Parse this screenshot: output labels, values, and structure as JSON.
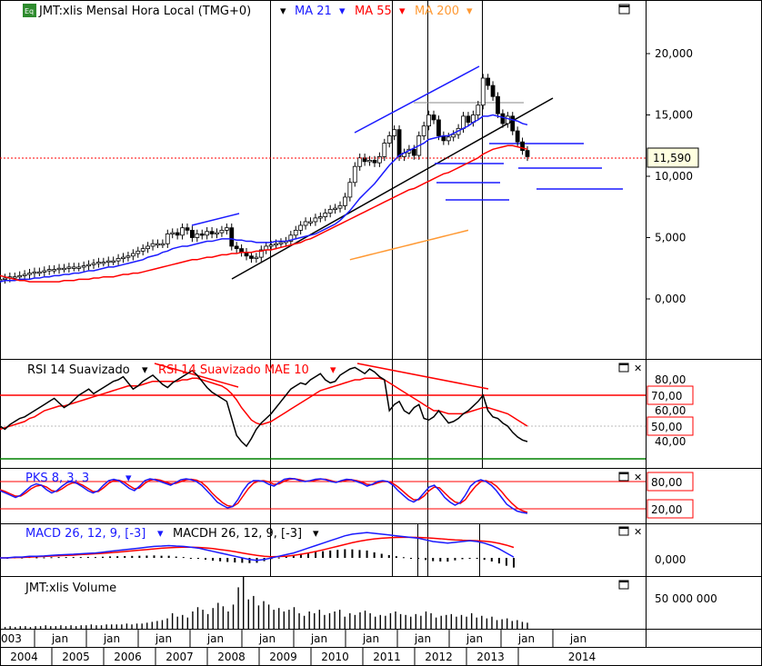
{
  "chart_data": {
    "type": "line",
    "panels": {
      "price": {
        "title": "JMT:xlis Mensal Hora Local (TMG+0)",
        "legend": [
          {
            "label": "MA 21",
            "color": "#1a1aff"
          },
          {
            "label": "MA 55",
            "color": "#ff0000"
          },
          {
            "label": "MA 200",
            "color": "#ff9933"
          }
        ],
        "y_ticks": [
          "20,000",
          "15,000",
          "10,000",
          "5,000",
          "0,000"
        ],
        "y_tick_values": [
          20,
          15,
          10,
          5,
          0
        ],
        "current_value_label": "11,590",
        "current_value": 11.59,
        "close_series": [
          1.6,
          1.7,
          1.8,
          1.8,
          1.9,
          2.0,
          2.1,
          2.2,
          2.2,
          2.3,
          2.4,
          2.4,
          2.5,
          2.5,
          2.6,
          2.6,
          2.6,
          2.7,
          2.8,
          2.9,
          3.0,
          3.0,
          3.1,
          3.1,
          3.3,
          3.4,
          3.5,
          3.7,
          3.9,
          4.1,
          4.3,
          4.5,
          4.5,
          4.5,
          5.3,
          5.4,
          5.2,
          5.8,
          5.6,
          5.0,
          5.3,
          5.2,
          5.5,
          5.3,
          5.4,
          5.6,
          5.8,
          4.3,
          4.1,
          3.8,
          3.5,
          3.3,
          3.4,
          4.0,
          4.3,
          4.4,
          4.5,
          4.6,
          4.7,
          5.2,
          5.6,
          6.0,
          6.3,
          6.3,
          6.6,
          6.7,
          7.0,
          7.3,
          7.4,
          7.6,
          8.3,
          9.5,
          10.8,
          11.5,
          11.2,
          11.3,
          11.1,
          11.6,
          12.7,
          13.3,
          13.8,
          11.6,
          11.9,
          12.2,
          11.7,
          13.3,
          14.1,
          15.0,
          14.6,
          13.3,
          12.9,
          13.2,
          13.4,
          13.9,
          14.9,
          14.4,
          15.0,
          15.8,
          18.0,
          17.4,
          16.5,
          15.1,
          14.3,
          14.9,
          13.7,
          12.8,
          12.1,
          11.6
        ],
        "ma21_series": [
          1.4,
          1.5,
          1.5,
          1.5,
          1.6,
          1.6,
          1.6,
          1.7,
          1.7,
          1.8,
          1.8,
          1.9,
          1.9,
          2.0,
          2.0,
          2.1,
          2.1,
          2.2,
          2.3,
          2.3,
          2.4,
          2.5,
          2.6,
          2.6,
          2.7,
          2.8,
          2.9,
          3.0,
          3.1,
          3.2,
          3.4,
          3.5,
          3.6,
          3.8,
          3.9,
          4.1,
          4.2,
          4.3,
          4.3,
          4.4,
          4.5,
          4.6,
          4.7,
          4.7,
          4.8,
          4.9,
          4.9,
          4.9,
          4.8,
          4.8,
          4.7,
          4.7,
          4.6,
          4.6,
          4.6,
          4.6,
          4.7,
          4.7,
          4.7,
          4.8,
          4.9,
          5.0,
          5.1,
          5.2,
          5.3,
          5.5,
          5.7,
          5.9,
          6.1,
          6.4,
          6.8,
          7.2,
          7.7,
          8.2,
          8.6,
          9.0,
          9.4,
          9.9,
          10.4,
          10.9,
          11.3,
          11.7,
          11.9,
          12.1,
          12.3,
          12.5,
          12.7,
          13.0,
          13.1,
          13.2,
          13.3,
          13.3,
          13.5,
          13.7,
          13.9,
          14.1,
          14.4,
          14.6,
          14.9,
          14.9,
          15.0,
          14.9,
          14.8,
          14.7,
          14.6,
          14.5,
          14.3,
          14.2
        ],
        "ma55_series": [
          1.9,
          1.8,
          1.7,
          1.6,
          1.5,
          1.5,
          1.4,
          1.4,
          1.4,
          1.4,
          1.4,
          1.4,
          1.4,
          1.5,
          1.5,
          1.5,
          1.6,
          1.6,
          1.6,
          1.7,
          1.7,
          1.8,
          1.8,
          1.8,
          1.9,
          2.0,
          2.0,
          2.1,
          2.1,
          2.2,
          2.3,
          2.4,
          2.5,
          2.6,
          2.7,
          2.8,
          2.9,
          3.0,
          3.1,
          3.2,
          3.2,
          3.3,
          3.4,
          3.4,
          3.5,
          3.6,
          3.6,
          3.7,
          3.7,
          3.8,
          3.8,
          3.8,
          3.9,
          3.9,
          4.0,
          4.0,
          4.1,
          4.2,
          4.3,
          4.4,
          4.5,
          4.6,
          4.8,
          4.9,
          5.1,
          5.3,
          5.5,
          5.7,
          5.9,
          6.1,
          6.3,
          6.5,
          6.7,
          6.9,
          7.1,
          7.3,
          7.5,
          7.7,
          7.9,
          8.1,
          8.3,
          8.5,
          8.7,
          8.9,
          9.0,
          9.2,
          9.4,
          9.6,
          9.8,
          10.0,
          10.2,
          10.3,
          10.5,
          10.7,
          10.9,
          11.1,
          11.3,
          11.5,
          11.8,
          12.0,
          12.2,
          12.3,
          12.4,
          12.5,
          12.5,
          12.4,
          12.3,
          12.2
        ],
        "ma200_series": [
          3.2,
          3.3,
          3.4,
          3.5,
          3.6,
          3.7,
          3.8,
          3.9,
          4.0,
          4.1,
          4.2,
          4.3,
          4.4,
          4.5,
          4.6,
          4.7,
          4.8,
          4.9,
          5.0,
          5.1,
          5.2,
          5.3,
          5.4,
          5.5,
          5.6
        ],
        "ma200_start_index": 71,
        "ylim": [
          -5,
          24
        ]
      },
      "rsi": {
        "title": "RSI 14 Suavizado",
        "legend_title": "RSI 14 Suavizado MAE 10",
        "levels": [
          "70,00",
          "50,00"
        ],
        "ticks": [
          "80,00",
          "60,00",
          "40,00"
        ],
        "rsi_series": [
          50,
          48,
          51,
          53,
          55,
          56,
          58,
          60,
          62,
          64,
          66,
          68,
          65,
          62,
          64,
          67,
          70,
          72,
          74,
          71,
          73,
          75,
          77,
          79,
          80,
          82,
          78,
          74,
          76,
          79,
          81,
          83,
          80,
          77,
          75,
          78,
          80,
          82,
          84,
          86,
          83,
          79,
          75,
          72,
          70,
          68,
          66,
          55,
          44,
          40,
          37,
          42,
          48,
          52,
          55,
          58,
          62,
          66,
          70,
          74,
          76,
          78,
          77,
          80,
          82,
          84,
          80,
          78,
          79,
          83,
          85,
          87,
          88,
          86,
          84,
          87,
          85,
          82,
          80,
          60,
          64,
          66,
          60,
          58,
          62,
          64,
          55,
          54,
          56,
          60,
          56,
          52,
          53,
          55,
          58,
          60,
          63,
          66,
          70,
          60,
          56,
          55,
          52,
          50,
          46,
          43,
          41,
          40
        ],
        "mae_series": [
          48,
          49,
          50,
          51,
          52,
          53,
          55,
          56,
          58,
          60,
          61,
          62,
          63,
          63,
          64,
          65,
          66,
          67,
          68,
          69,
          70,
          71,
          72,
          73,
          74,
          75,
          76,
          76,
          76,
          77,
          78,
          79,
          79,
          79,
          79,
          79,
          79,
          80,
          80,
          81,
          81,
          80,
          79,
          78,
          77,
          76,
          74,
          71,
          67,
          62,
          58,
          54,
          52,
          51,
          52,
          53,
          55,
          57,
          59,
          61,
          63,
          65,
          67,
          69,
          71,
          73,
          74,
          75,
          76,
          77,
          78,
          79,
          80,
          80,
          81,
          81,
          81,
          81,
          80,
          78,
          76,
          74,
          72,
          70,
          68,
          66,
          64,
          62,
          60,
          60,
          59,
          58,
          58,
          58,
          58,
          59,
          60,
          61,
          62,
          62,
          61,
          60,
          59,
          58,
          56,
          54,
          52,
          50
        ],
        "ylim": [
          30,
          90
        ]
      },
      "pks": {
        "title": "PKS 8, 3, 3",
        "levels": [
          "80,00",
          "20,00"
        ],
        "fast_series": [
          60,
          55,
          50,
          45,
          50,
          60,
          70,
          75,
          72,
          62,
          55,
          60,
          70,
          78,
          80,
          75,
          68,
          60,
          55,
          60,
          72,
          82,
          85,
          82,
          74,
          65,
          60,
          70,
          82,
          86,
          84,
          80,
          76,
          72,
          78,
          84,
          86,
          84,
          80,
          72,
          60,
          48,
          35,
          28,
          22,
          25,
          40,
          60,
          75,
          82,
          82,
          80,
          74,
          70,
          78,
          85,
          87,
          86,
          82,
          80,
          82,
          85,
          86,
          84,
          80,
          78,
          82,
          85,
          84,
          80,
          76,
          70,
          74,
          80,
          82,
          80,
          72,
          60,
          50,
          40,
          35,
          42,
          55,
          68,
          72,
          60,
          45,
          35,
          28,
          34,
          50,
          70,
          80,
          84,
          80,
          72,
          60,
          45,
          30,
          22,
          15,
          12,
          10
        ],
        "slow_series": [
          62,
          58,
          53,
          48,
          48,
          55,
          64,
          70,
          72,
          68,
          60,
          58,
          64,
          72,
          77,
          77,
          72,
          65,
          58,
          58,
          66,
          76,
          82,
          83,
          79,
          71,
          64,
          66,
          76,
          83,
          85,
          83,
          79,
          75,
          76,
          80,
          84,
          85,
          83,
          78,
          68,
          55,
          44,
          34,
          27,
          25,
          32,
          48,
          64,
          76,
          81,
          82,
          79,
          74,
          75,
          81,
          85,
          86,
          84,
          81,
          81,
          83,
          85,
          85,
          82,
          79,
          80,
          83,
          84,
          82,
          79,
          74,
          73,
          77,
          80,
          80,
          76,
          68,
          58,
          48,
          40,
          40,
          48,
          60,
          68,
          66,
          55,
          44,
          35,
          32,
          40,
          56,
          70,
          80,
          82,
          78,
          70,
          58,
          44,
          32,
          22,
          16,
          12
        ]
      },
      "macd": {
        "title": "MACD 26, 12, 9, [-3]",
        "histogram_title": "MACDH 26, 12, 9, [-3]",
        "tick": "0,000",
        "macd_series": [
          0.0,
          0.0,
          0.05,
          0.05,
          0.1,
          0.1,
          0.12,
          0.15,
          0.18,
          0.2,
          0.22,
          0.25,
          0.28,
          0.3,
          0.35,
          0.4,
          0.45,
          0.5,
          0.55,
          0.6,
          0.65,
          0.7,
          0.72,
          0.75,
          0.72,
          0.7,
          0.65,
          0.6,
          0.5,
          0.4,
          0.3,
          0.2,
          0.1,
          0.0,
          -0.1,
          -0.15,
          -0.1,
          0.0,
          0.1,
          0.2,
          0.3,
          0.45,
          0.6,
          0.75,
          0.9,
          1.05,
          1.2,
          1.35,
          1.45,
          1.5,
          1.55,
          1.5,
          1.45,
          1.4,
          1.35,
          1.3,
          1.25,
          1.2,
          1.1,
          1.0,
          0.95,
          0.9,
          0.95,
          1.0,
          1.05,
          1.0,
          0.9,
          0.75,
          0.55,
          0.3,
          0.05
        ],
        "signal_series": [
          0.0,
          0.0,
          0.02,
          0.03,
          0.05,
          0.07,
          0.09,
          0.11,
          0.13,
          0.15,
          0.17,
          0.2,
          0.22,
          0.25,
          0.28,
          0.31,
          0.35,
          0.39,
          0.43,
          0.47,
          0.51,
          0.55,
          0.59,
          0.62,
          0.64,
          0.65,
          0.65,
          0.64,
          0.61,
          0.57,
          0.51,
          0.45,
          0.38,
          0.3,
          0.22,
          0.15,
          0.1,
          0.07,
          0.08,
          0.1,
          0.15,
          0.22,
          0.3,
          0.39,
          0.49,
          0.6,
          0.71,
          0.82,
          0.93,
          1.02,
          1.1,
          1.16,
          1.2,
          1.23,
          1.25,
          1.26,
          1.26,
          1.25,
          1.23,
          1.2,
          1.17,
          1.13,
          1.1,
          1.08,
          1.07,
          1.05,
          1.02,
          0.97,
          0.89,
          0.78,
          0.64
        ],
        "hist_series": [
          0,
          0,
          0.03,
          0.02,
          0.05,
          0.03,
          0.03,
          0.04,
          0.05,
          0.05,
          0.05,
          0.05,
          0.06,
          0.05,
          0.07,
          0.09,
          0.1,
          0.11,
          0.12,
          0.13,
          0.14,
          0.15,
          0.13,
          0.13,
          0.08,
          0.05,
          0,
          -0.04,
          -0.11,
          -0.17,
          -0.21,
          -0.25,
          -0.28,
          -0.3,
          -0.32,
          -0.3,
          -0.2,
          -0.07,
          0.02,
          0.1,
          0.15,
          0.23,
          0.3,
          0.36,
          0.41,
          0.45,
          0.49,
          0.53,
          0.52,
          0.48,
          0.45,
          0.34,
          0.25,
          0.17,
          0.1,
          0.04,
          -0.01,
          -0.05,
          -0.13,
          -0.2,
          -0.22,
          -0.23,
          -0.15,
          -0.08,
          -0.02,
          -0.05,
          -0.12,
          -0.22,
          -0.34,
          -0.48,
          -0.59
        ]
      },
      "volume": {
        "title": "JMT:xlis Volume",
        "tick": "50 000 000",
        "series": [
          2,
          2,
          3,
          2,
          3,
          3,
          2,
          3,
          3,
          4,
          3,
          3,
          4,
          3,
          4,
          3,
          4,
          4,
          5,
          4,
          4,
          5,
          5,
          5,
          5,
          6,
          5,
          6,
          6,
          7,
          8,
          9,
          10,
          12,
          18,
          14,
          16,
          13,
          20,
          25,
          22,
          17,
          24,
          30,
          26,
          20,
          28,
          48,
          60,
          34,
          38,
          27,
          32,
          28,
          22,
          24,
          20,
          22,
          25,
          18,
          15,
          20,
          18,
          22,
          16,
          18,
          20,
          22,
          14,
          18,
          16,
          19,
          21,
          18,
          14,
          16,
          15,
          18,
          20,
          17,
          16,
          14,
          17,
          15,
          20,
          18,
          13,
          15,
          16,
          17,
          14,
          16,
          14,
          18,
          13,
          15,
          12,
          14,
          10,
          11,
          12,
          9,
          10,
          8,
          7
        ]
      }
    },
    "x_axis": {
      "year_labels": [
        "2004",
        "2005",
        "2006",
        "2007",
        "2008",
        "2009",
        "2010",
        "2011",
        "2012",
        "2013",
        "2014"
      ],
      "jan_label": "jan",
      "jan_count": 11,
      "edge_label": "003"
    }
  },
  "panel_icons": {
    "maximize": "maximize-icon",
    "close": "close-icon"
  }
}
